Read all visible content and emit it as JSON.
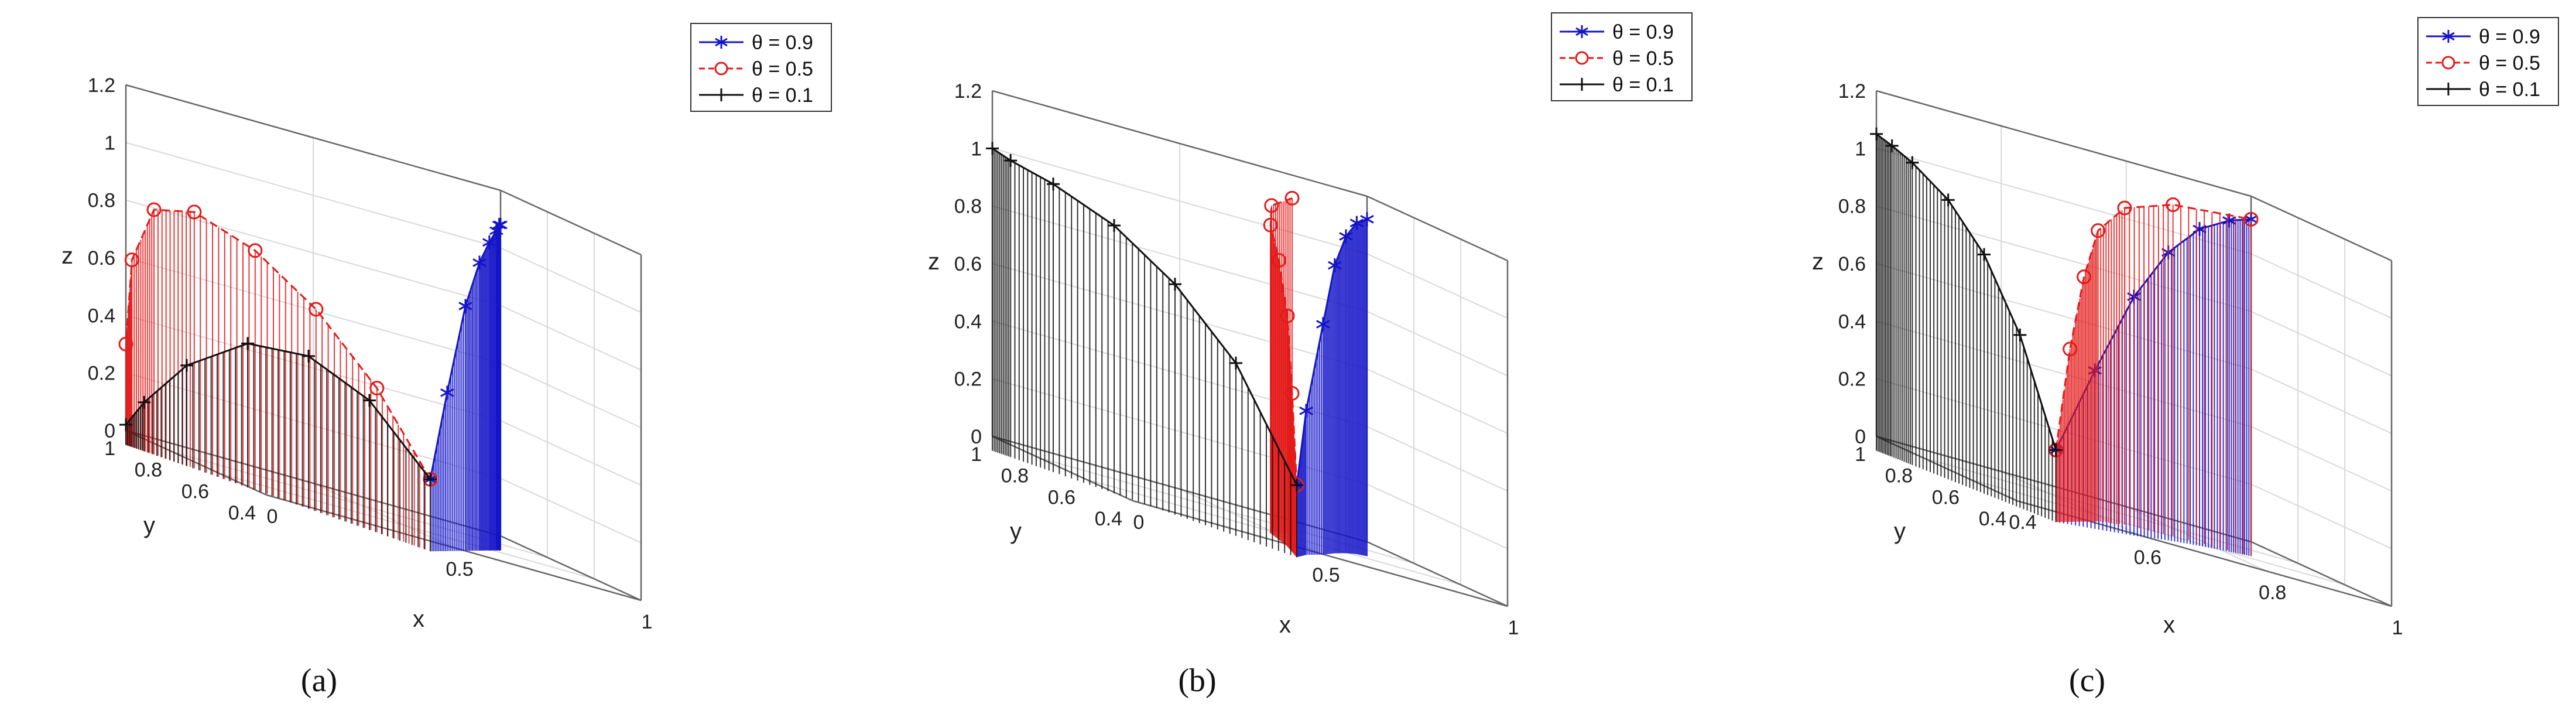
{
  "figure": {
    "panel_captions": [
      "(a)",
      "(b)",
      "(c)"
    ]
  },
  "legend": {
    "entries": [
      {
        "label": "θ = 0.9",
        "color": "#1414c8",
        "marker": "asterisk",
        "dash": "solid"
      },
      {
        "label": "θ = 0.5",
        "color": "#e41a1a",
        "marker": "circle",
        "dash": "dashed"
      },
      {
        "label": "θ = 0.1",
        "color": "#111111",
        "marker": "plus",
        "dash": "solid"
      }
    ]
  },
  "chart_data": [
    {
      "type": "line3d_stem",
      "caption": "(a)",
      "xlabel": "x",
      "ylabel": "y",
      "zlabel": "z",
      "xlim": [
        0,
        1
      ],
      "ylim": [
        0.4,
        1
      ],
      "zlim": [
        0,
        1.2
      ],
      "xticks": [
        "0",
        "0.5",
        "1"
      ],
      "yticks": [
        "0.4",
        "0.6",
        "0.8",
        "1"
      ],
      "zticks": [
        "0",
        "0.2",
        "0.4",
        "0.6",
        "0.8",
        "1",
        "1.2"
      ],
      "series": [
        {
          "name": "θ = 0.9",
          "points": [
            [
              0.5,
              0.5,
              0.2
            ],
            [
              0.62,
              0.62,
              0.5
            ],
            [
              0.75,
              0.75,
              0.8
            ],
            [
              0.85,
              0.85,
              0.95
            ],
            [
              0.92,
              0.92,
              1.02
            ],
            [
              0.97,
              0.97,
              1.06
            ],
            [
              0.99,
              0.99,
              1.08
            ],
            [
              1,
              1,
              1.08
            ]
          ]
        },
        {
          "name": "θ = 0.5",
          "points": [
            [
              0.5,
              0.5,
              0.2
            ],
            [
              0.42,
              0.6,
              0.45
            ],
            [
              0.32,
              0.7,
              0.65
            ],
            [
              0.22,
              0.8,
              0.78
            ],
            [
              0.12,
              0.9,
              0.84
            ],
            [
              0.05,
              0.96,
              0.8
            ],
            [
              0.01,
              0.99,
              0.6
            ],
            [
              0,
              1,
              0.3
            ]
          ]
        },
        {
          "name": "θ = 0.1",
          "points": [
            [
              0.5,
              0.5,
              0.2
            ],
            [
              0.4,
              0.6,
              0.4
            ],
            [
              0.3,
              0.7,
              0.48
            ],
            [
              0.2,
              0.8,
              0.45
            ],
            [
              0.1,
              0.9,
              0.3
            ],
            [
              0.03,
              0.97,
              0.12
            ],
            [
              0,
              1,
              0.02
            ]
          ]
        }
      ]
    },
    {
      "type": "line3d_stem",
      "caption": "(b)",
      "xlabel": "x",
      "ylabel": "y",
      "zlabel": "z",
      "xlim": [
        0,
        1
      ],
      "ylim": [
        0.4,
        1
      ],
      "zlim": [
        0,
        1.2
      ],
      "xticks": [
        "0",
        "0.5",
        "1"
      ],
      "yticks": [
        "0.4",
        "0.6",
        "0.8",
        "1"
      ],
      "zticks": [
        "0",
        "0.2",
        "0.4",
        "0.6",
        "0.8",
        "1",
        "1.2"
      ],
      "series": [
        {
          "name": "θ = 0.9",
          "points": [
            [
              0.5,
              0.5,
              0.2
            ],
            [
              0.6,
              0.62,
              0.45
            ],
            [
              0.72,
              0.74,
              0.75
            ],
            [
              0.82,
              0.85,
              0.95
            ],
            [
              0.9,
              0.93,
              1.05
            ],
            [
              0.96,
              0.98,
              1.1
            ],
            [
              1,
              1,
              1.12
            ]
          ]
        },
        {
          "name": "θ = 0.5",
          "points": [
            [
              0.5,
              0.5,
              0.2
            ],
            [
              0.55,
              0.6,
              0.5
            ],
            [
              0.6,
              0.7,
              0.75
            ],
            [
              0.64,
              0.8,
              0.92
            ],
            [
              0.68,
              0.9,
              1.02
            ],
            [
              0.72,
              0.96,
              1.08
            ],
            [
              0.8,
              1,
              1.12
            ]
          ]
        },
        {
          "name": "θ = 0.1",
          "points": [
            [
              0.5,
              0.5,
              0.2
            ],
            [
              0.4,
              0.6,
              0.55
            ],
            [
              0.3,
              0.7,
              0.75
            ],
            [
              0.2,
              0.8,
              0.88
            ],
            [
              0.1,
              0.9,
              0.95
            ],
            [
              0.03,
              0.97,
              0.98
            ],
            [
              0,
              1,
              1
            ]
          ]
        }
      ]
    },
    {
      "type": "line3d_stem",
      "caption": "(c)",
      "xlabel": "x",
      "ylabel": "y",
      "zlabel": "z",
      "xlim": [
        0.4,
        1
      ],
      "ylim": [
        0.4,
        1
      ],
      "zlim": [
        0,
        1.2
      ],
      "xticks": [
        "0.4",
        "0.6",
        "0.8",
        "1"
      ],
      "yticks": [
        "0.4",
        "0.6",
        "0.8",
        "1"
      ],
      "zticks": [
        "0",
        "0.2",
        "0.4",
        "0.6",
        "0.8",
        "1",
        "1.2"
      ],
      "series": [
        {
          "name": "θ = 0.9",
          "points": [
            [
              0.5,
              0.5,
              0.2
            ],
            [
              0.6,
              0.6,
              0.5
            ],
            [
              0.7,
              0.7,
              0.78
            ],
            [
              0.8,
              0.82,
              0.95
            ],
            [
              0.88,
              0.9,
              1.05
            ],
            [
              0.95,
              0.96,
              1.1
            ],
            [
              1,
              1,
              1.12
            ]
          ]
        },
        {
          "name": "θ = 0.5",
          "points": [
            [
              0.5,
              0.5,
              0.2
            ],
            [
              0.56,
              0.6,
              0.55
            ],
            [
              0.62,
              0.7,
              0.8
            ],
            [
              0.68,
              0.8,
              0.96
            ],
            [
              0.76,
              0.9,
              1.05
            ],
            [
              0.86,
              0.96,
              1.1
            ],
            [
              1,
              1,
              1.12
            ]
          ]
        },
        {
          "name": "θ = 0.1",
          "points": [
            [
              0.5,
              0.5,
              0.2
            ],
            [
              0.48,
              0.6,
              0.55
            ],
            [
              0.46,
              0.7,
              0.78
            ],
            [
              0.44,
              0.8,
              0.92
            ],
            [
              0.42,
              0.9,
              1
            ],
            [
              0.41,
              0.96,
              1.03
            ],
            [
              0.4,
              1,
              1.05
            ]
          ]
        }
      ]
    }
  ]
}
